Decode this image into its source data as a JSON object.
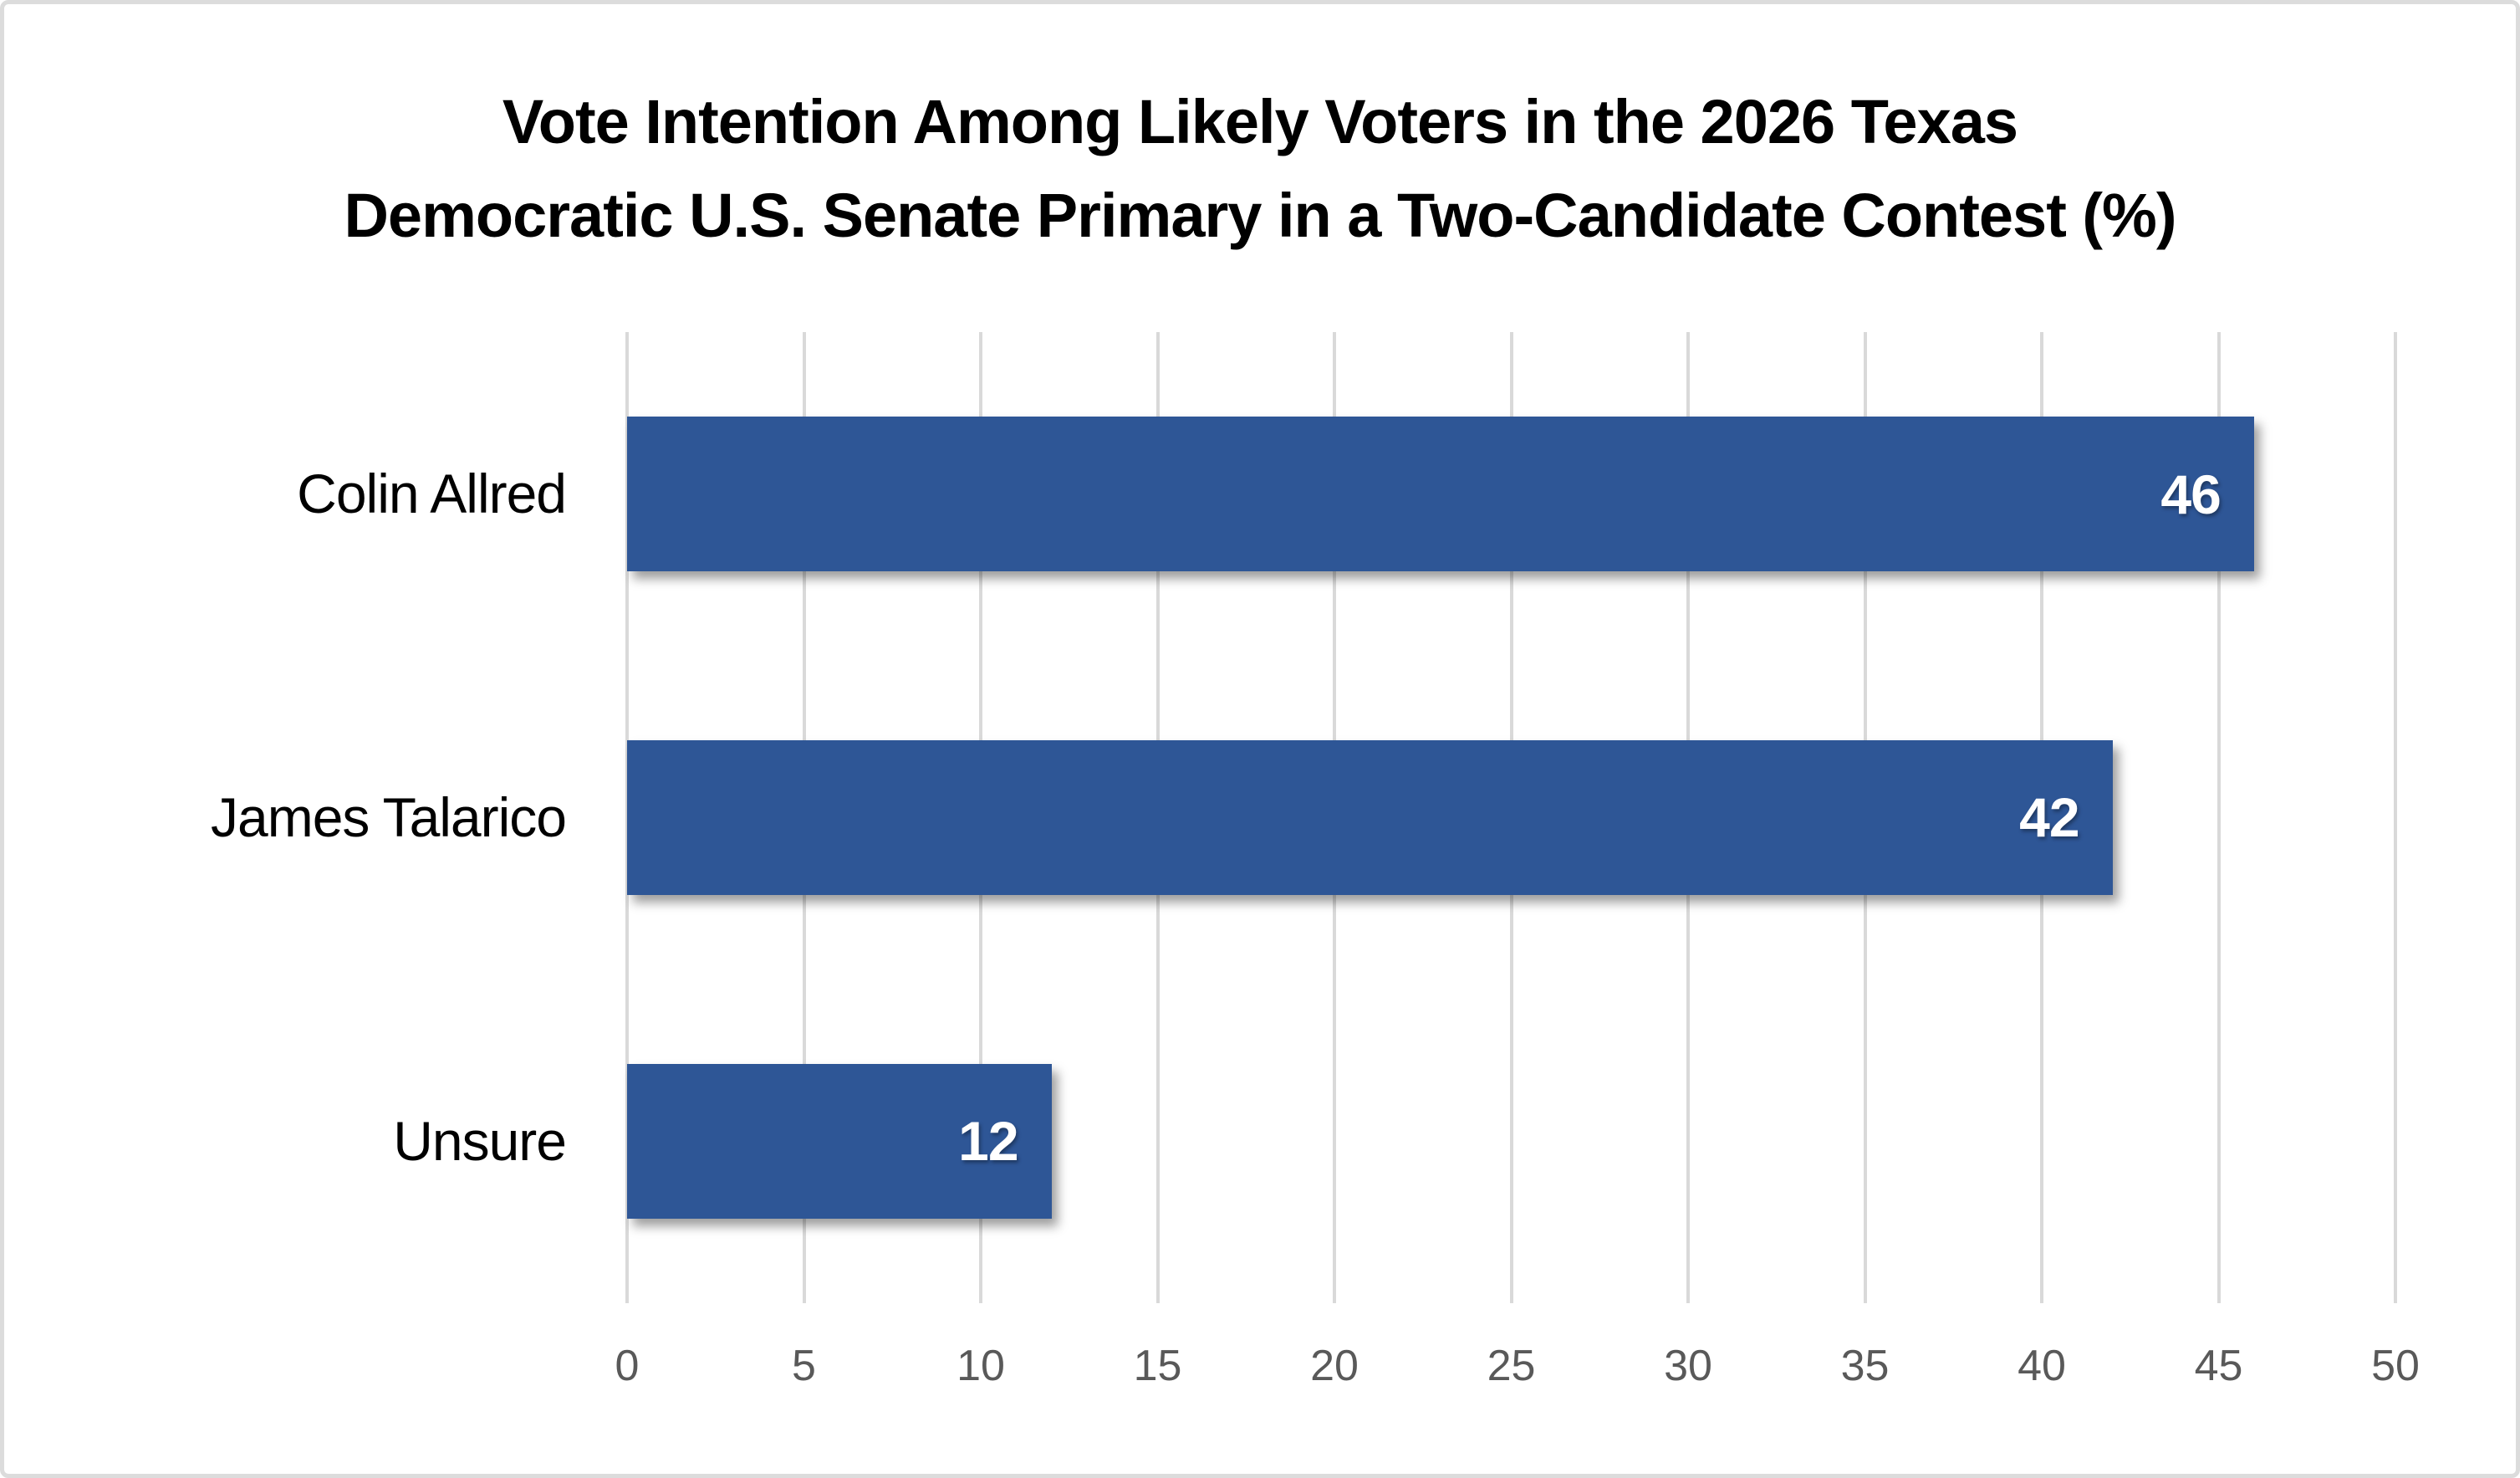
{
  "chart_data": {
    "type": "bar",
    "orientation": "horizontal",
    "title": "Vote Intention Among Likely Voters in the 2026 Texas Democratic U.S. Senate Primary in a Two-Candidate Contest (%)",
    "title_lines": [
      "Vote Intention Among Likely Voters in the 2026 Texas",
      "Democratic U.S. Senate Primary in a Two-Candidate Contest (%)"
    ],
    "categories": [
      "Colin Allred",
      "James Talarico",
      "Unsure"
    ],
    "values": [
      46,
      42,
      12
    ],
    "xlabel": "",
    "ylabel": "",
    "xlim": [
      0,
      50
    ],
    "xticks": [
      0,
      5,
      10,
      15,
      20,
      25,
      30,
      35,
      40,
      45,
      50
    ],
    "grid": "vertical-on",
    "legend": "none",
    "colors": {
      "bar": "#2E5696",
      "value_label": "#FFFFFF",
      "axis_label": "#595959",
      "gridline": "#D9D9D9",
      "title": "#000000",
      "category_label": "#000000",
      "frame_border": "#DCDCDC"
    }
  }
}
